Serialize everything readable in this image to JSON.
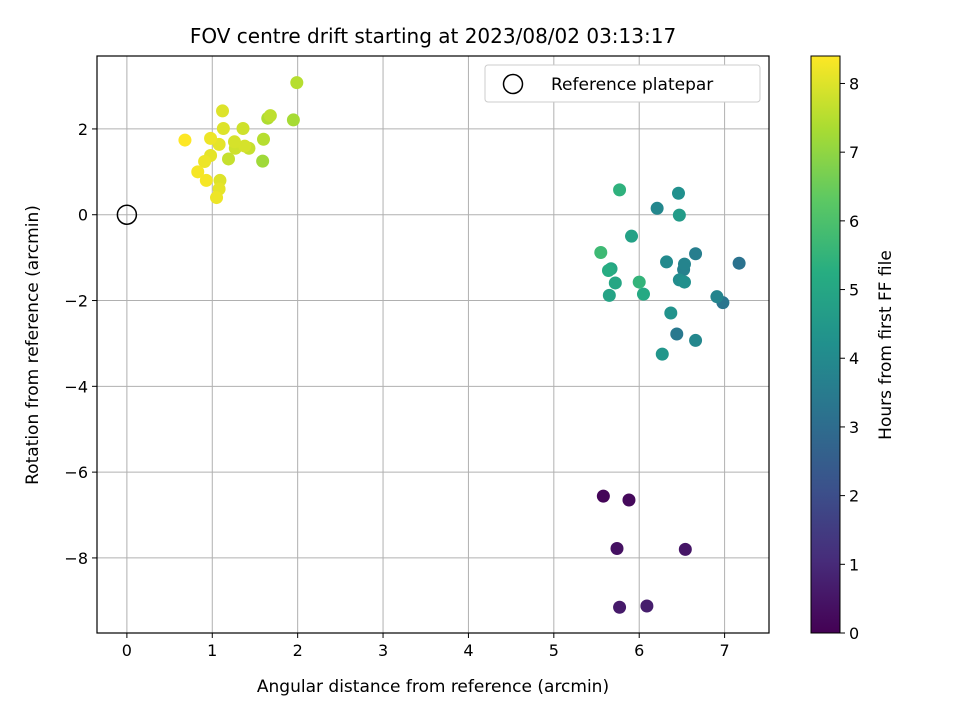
{
  "chart_data": {
    "type": "scatter",
    "title": "FOV centre drift starting at 2023/08/02 03:13:17",
    "xlabel": "Angular distance from reference (arcmin)",
    "ylabel": "Rotation from reference (arcmin)",
    "xlim": [
      -0.35,
      7.52
    ],
    "ylim": [
      -9.75,
      3.7
    ],
    "xticks": [
      0,
      1,
      2,
      3,
      4,
      5,
      6,
      7
    ],
    "yticks": [
      -8,
      -6,
      -4,
      -2,
      0,
      2
    ],
    "grid": true,
    "legend": {
      "placement": "top-right",
      "entries": [
        "Reference platepar"
      ]
    },
    "reference_point": {
      "x": 0,
      "y": 0
    },
    "colorbar": {
      "label": "Hours from first FF file",
      "colormap": "viridis",
      "range": [
        0,
        8.4
      ],
      "ticks": [
        0,
        1,
        2,
        3,
        4,
        5,
        6,
        7,
        8
      ]
    },
    "points": [
      {
        "x": 5.58,
        "y": -6.56,
        "h": 0.1
      },
      {
        "x": 5.88,
        "y": -6.65,
        "h": 0.2
      },
      {
        "x": 5.74,
        "y": -7.78,
        "h": 0.4
      },
      {
        "x": 6.54,
        "y": -7.8,
        "h": 0.5
      },
      {
        "x": 5.77,
        "y": -9.15,
        "h": 0.6
      },
      {
        "x": 6.09,
        "y": -9.12,
        "h": 0.7
      },
      {
        "x": 7.17,
        "y": -1.13,
        "h": 3.2
      },
      {
        "x": 6.98,
        "y": -2.05,
        "h": 3.3
      },
      {
        "x": 6.44,
        "y": -2.78,
        "h": 3.4
      },
      {
        "x": 6.66,
        "y": -0.91,
        "h": 3.6
      },
      {
        "x": 6.52,
        "y": -1.28,
        "h": 3.7
      },
      {
        "x": 6.53,
        "y": -1.15,
        "h": 3.8
      },
      {
        "x": 6.91,
        "y": -1.91,
        "h": 3.8
      },
      {
        "x": 6.21,
        "y": 0.15,
        "h": 3.9
      },
      {
        "x": 6.66,
        "y": -2.93,
        "h": 3.9
      },
      {
        "x": 6.32,
        "y": -1.1,
        "h": 4.0
      },
      {
        "x": 6.47,
        "y": -1.52,
        "h": 4.1
      },
      {
        "x": 6.53,
        "y": -1.57,
        "h": 4.2
      },
      {
        "x": 6.46,
        "y": 0.5,
        "h": 4.2
      },
      {
        "x": 6.37,
        "y": -2.29,
        "h": 4.3
      },
      {
        "x": 6.27,
        "y": -3.25,
        "h": 4.4
      },
      {
        "x": 6.47,
        "y": -0.01,
        "h": 4.6
      },
      {
        "x": 5.91,
        "y": -0.5,
        "h": 4.8
      },
      {
        "x": 5.65,
        "y": -1.88,
        "h": 4.9
      },
      {
        "x": 5.72,
        "y": -1.59,
        "h": 5.0
      },
      {
        "x": 5.67,
        "y": -1.26,
        "h": 5.0
      },
      {
        "x": 6.05,
        "y": -1.85,
        "h": 5.1
      },
      {
        "x": 5.64,
        "y": -1.3,
        "h": 5.2
      },
      {
        "x": 5.77,
        "y": 0.58,
        "h": 5.4
      },
      {
        "x": 6.0,
        "y": -1.57,
        "h": 5.5
      },
      {
        "x": 5.55,
        "y": -0.88,
        "h": 5.7
      },
      {
        "x": 1.59,
        "y": 1.25,
        "h": 7.2
      },
      {
        "x": 1.95,
        "y": 2.21,
        "h": 7.3
      },
      {
        "x": 1.65,
        "y": 2.25,
        "h": 7.4
      },
      {
        "x": 1.99,
        "y": 3.08,
        "h": 7.5
      },
      {
        "x": 1.6,
        "y": 1.76,
        "h": 7.5
      },
      {
        "x": 1.68,
        "y": 2.31,
        "h": 7.6
      },
      {
        "x": 1.43,
        "y": 1.55,
        "h": 7.7
      },
      {
        "x": 1.19,
        "y": 1.3,
        "h": 7.7
      },
      {
        "x": 1.36,
        "y": 2.01,
        "h": 7.8
      },
      {
        "x": 1.27,
        "y": 1.55,
        "h": 7.8
      },
      {
        "x": 1.38,
        "y": 1.6,
        "h": 7.9
      },
      {
        "x": 1.26,
        "y": 1.7,
        "h": 7.9
      },
      {
        "x": 1.12,
        "y": 2.42,
        "h": 8.0
      },
      {
        "x": 1.13,
        "y": 2.01,
        "h": 8.0
      },
      {
        "x": 1.09,
        "y": 0.8,
        "h": 8.0
      },
      {
        "x": 1.08,
        "y": 1.64,
        "h": 8.1
      },
      {
        "x": 0.98,
        "y": 1.38,
        "h": 8.1
      },
      {
        "x": 1.08,
        "y": 0.6,
        "h": 8.1
      },
      {
        "x": 0.91,
        "y": 1.24,
        "h": 8.2
      },
      {
        "x": 1.05,
        "y": 0.4,
        "h": 8.2
      },
      {
        "x": 0.98,
        "y": 1.78,
        "h": 8.2
      },
      {
        "x": 0.93,
        "y": 0.8,
        "h": 8.3
      },
      {
        "x": 0.83,
        "y": 1.0,
        "h": 8.3
      },
      {
        "x": 0.68,
        "y": 1.74,
        "h": 8.4
      }
    ]
  }
}
